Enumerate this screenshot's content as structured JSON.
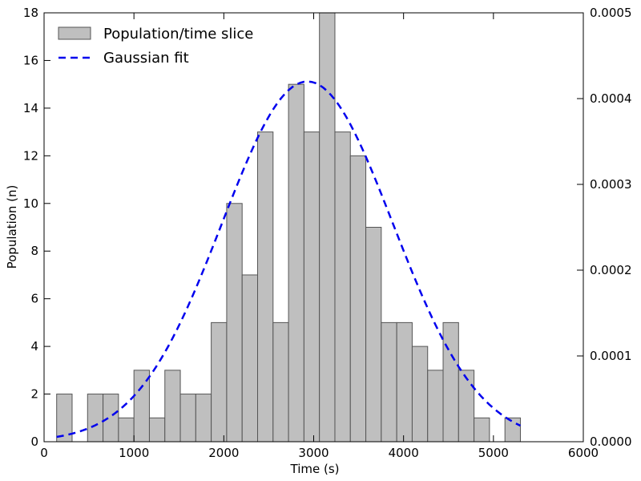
{
  "chart_data": {
    "type": "bar",
    "title": "",
    "xlabel": "Time (s)",
    "ylabel": "Population (n)",
    "xlim": [
      0,
      6000
    ],
    "ylim": [
      0,
      18
    ],
    "y2lim": [
      0,
      0.0005
    ],
    "grid": false,
    "legend_position": "top-left",
    "x_ticks": [
      "0",
      "1000",
      "2000",
      "3000",
      "4000",
      "5000",
      "6000"
    ],
    "y_ticks": [
      "0",
      "2",
      "4",
      "6",
      "8",
      "10",
      "12",
      "14",
      "16",
      "18"
    ],
    "y2_ticks": [
      "0.0000",
      "0.0001",
      "0.0002",
      "0.0003",
      "0.0004",
      "0.0005"
    ],
    "bin_width": 172,
    "series": [
      {
        "name": "Population/time slice",
        "type": "histogram",
        "color": "#bfbfbf",
        "edge_color": "#555555",
        "bin_starts": [
          140,
          312,
          484,
          656,
          828,
          1000,
          1172,
          1344,
          1516,
          1688,
          1860,
          2032,
          2204,
          2376,
          2548,
          2720,
          2892,
          3064,
          3236,
          3408,
          3580,
          3752,
          3924,
          4096,
          4268,
          4440,
          4612,
          4784,
          4956,
          5128
        ],
        "values": [
          2,
          0,
          2,
          2,
          1,
          3,
          1,
          3,
          2,
          2,
          5,
          10,
          7,
          13,
          5,
          15,
          13,
          18,
          13,
          12,
          9,
          5,
          5,
          4,
          3,
          5,
          3,
          1,
          0,
          1
        ]
      },
      {
        "name": "Gaussian fit",
        "type": "line",
        "axis": "right",
        "color": "#0000ee",
        "style": "dashed",
        "mean": 2930,
        "sigma": 950,
        "x_range": [
          140,
          5300
        ]
      }
    ]
  }
}
